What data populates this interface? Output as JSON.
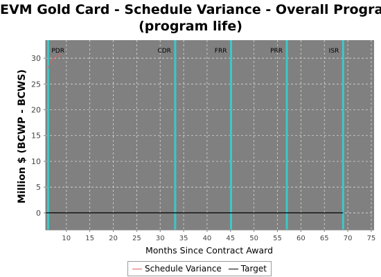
{
  "title_lines": [
    "EVM Gold Card - Schedule Variance - Overall Program",
    "(program life)"
  ],
  "chart_data": {
    "type": "line",
    "title": "EVM Gold Card - Schedule Variance - Overall Program (program life)",
    "xlabel": "Months Since Contract Award",
    "ylabel": "Million $ (BCWP - BCWS)",
    "xlim": [
      5.6,
      75.6
    ],
    "ylim": [
      -3.3,
      33.5
    ],
    "xticks": [
      10,
      15,
      20,
      25,
      30,
      35,
      40,
      45,
      50,
      55,
      60,
      65,
      70,
      75
    ],
    "yticks": [
      0,
      5,
      10,
      15,
      20,
      25,
      30
    ],
    "grid": true,
    "background": "#808080",
    "milestones": [
      {
        "label": "PDR",
        "x": 6.1
      },
      {
        "label": "CDR",
        "x": 33.2
      },
      {
        "label": "FRR",
        "x": 45.1
      },
      {
        "label": "PRR",
        "x": 57.0
      },
      {
        "label": "ISR",
        "x": 69.0
      }
    ],
    "milestone_color": "#3cc8c8",
    "series": [
      {
        "name": "Schedule Variance",
        "color": "#e06060",
        "x": [
          6.1,
          6.6,
          7.1,
          7.6,
          8.2,
          9.0
        ],
        "y": [
          28.0,
          29.2,
          29.8,
          30.2,
          30.5,
          30.8
        ]
      },
      {
        "name": "Target",
        "color": "#000000",
        "x": [
          5.6,
          69.0
        ],
        "y": [
          0,
          0
        ]
      }
    ],
    "legend_position": "bottom-center"
  }
}
